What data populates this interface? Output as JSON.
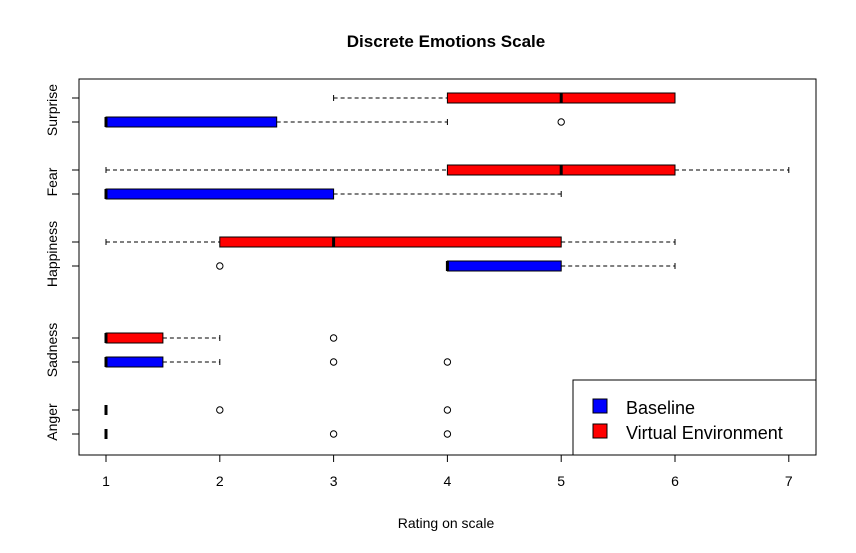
{
  "chart_data": {
    "type": "boxplot",
    "orientation": "horizontal",
    "title": "Discrete Emotions Scale",
    "xlabel": "Rating on scale",
    "ylabel": "",
    "xlim": [
      0.75,
      7.25
    ],
    "xticks": [
      1,
      2,
      3,
      4,
      5,
      6,
      7
    ],
    "categories": [
      "Anger",
      "Sadness",
      "Happiness",
      "Fear",
      "Surprise"
    ],
    "legend": {
      "position": "bottom-right",
      "entries": [
        {
          "name": "Baseline",
          "color": "#0000ff"
        },
        {
          "name": "Virtual Environment",
          "color": "#ff0000"
        }
      ]
    },
    "series": [
      {
        "name": "Baseline",
        "color": "#0000ff",
        "boxes": [
          {
            "category": "Anger",
            "whisker_low": 1,
            "q1": 1,
            "median": 1,
            "q3": 1,
            "whisker_high": 1,
            "outliers": [
              3,
              4
            ]
          },
          {
            "category": "Sadness",
            "whisker_low": 1,
            "q1": 1,
            "median": 1,
            "q3": 1.5,
            "whisker_high": 2,
            "outliers": [
              3,
              4
            ]
          },
          {
            "category": "Happiness",
            "whisker_low": 4,
            "q1": 4,
            "median": 4,
            "q3": 5,
            "whisker_high": 6,
            "outliers": [
              2
            ]
          },
          {
            "category": "Fear",
            "whisker_low": 1,
            "q1": 1,
            "median": 1,
            "q3": 3,
            "whisker_high": 5,
            "outliers": []
          },
          {
            "category": "Surprise",
            "whisker_low": 1,
            "q1": 1,
            "median": 1,
            "q3": 2.5,
            "whisker_high": 4,
            "outliers": [
              5
            ]
          }
        ]
      },
      {
        "name": "Virtual Environment",
        "color": "#ff0000",
        "boxes": [
          {
            "category": "Anger",
            "whisker_low": 1,
            "q1": 1,
            "median": 1,
            "q3": 1,
            "whisker_high": 1,
            "outliers": [
              2,
              4
            ]
          },
          {
            "category": "Sadness",
            "whisker_low": 1,
            "q1": 1,
            "median": 1,
            "q3": 1.5,
            "whisker_high": 2,
            "outliers": [
              3
            ]
          },
          {
            "category": "Happiness",
            "whisker_low": 1,
            "q1": 2,
            "median": 3,
            "q3": 5,
            "whisker_high": 6,
            "outliers": []
          },
          {
            "category": "Fear",
            "whisker_low": 1,
            "q1": 4,
            "median": 5,
            "q3": 6,
            "whisker_high": 7,
            "outliers": []
          },
          {
            "category": "Surprise",
            "whisker_low": 3,
            "q1": 4,
            "median": 5,
            "q3": 6,
            "whisker_high": 6,
            "outliers": []
          }
        ]
      }
    ]
  }
}
